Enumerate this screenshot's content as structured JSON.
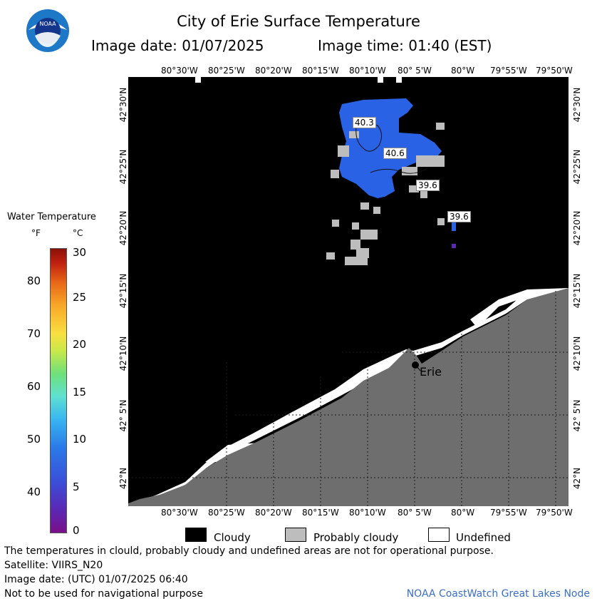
{
  "header": {
    "title": "City of Erie Surface Temperature",
    "image_date": "Image date: 01/07/2025",
    "image_time": "Image time: 01:40 (EST)",
    "logo_text": "NOAA"
  },
  "map": {
    "lon_labels": [
      "80°30'W",
      "80°25'W",
      "80°20'W",
      "80°15'W",
      "80°10'W",
      "80° 5'W",
      "80°W",
      "79°55'W",
      "79°50'W"
    ],
    "lat_labels": [
      "42°30'N",
      "42°25'N",
      "42°20'N",
      "42°15'N",
      "42°10'N",
      "42° 5'N",
      "42°N"
    ],
    "temp_labels": [
      "40.3",
      "40.6",
      "39.6",
      "39.6"
    ],
    "city_label": "Erie"
  },
  "legend": {
    "title": "Water Temperature",
    "unit_f": "°F",
    "unit_c": "°C",
    "f_ticks": [
      "80",
      "70",
      "60",
      "50",
      "40"
    ],
    "c_ticks": [
      "30",
      "25",
      "20",
      "15",
      "10",
      "5",
      "0"
    ]
  },
  "key": {
    "cloudy": "Cloudy",
    "probably_cloudy": "Probably cloudy",
    "undefined": "Undefined",
    "colors": {
      "cloudy": "#000000",
      "probably_cloudy": "#bdbdbd",
      "undefined": "#ffffff",
      "land": "#6e6e6e",
      "water_temp": "#2a62e6"
    }
  },
  "footer": {
    "disclaimer": "The temperatures in clould, probably cloudy and undefined areas are not for operational purpose.",
    "satellite": "Satellite: VIIRS_N20",
    "image_date_utc": "Image date: (UTC) 01/07/2025  06:40",
    "nav_warning": "Not to be used for navigational purpose",
    "credit": "NOAA CoastWatch Great Lakes Node"
  }
}
